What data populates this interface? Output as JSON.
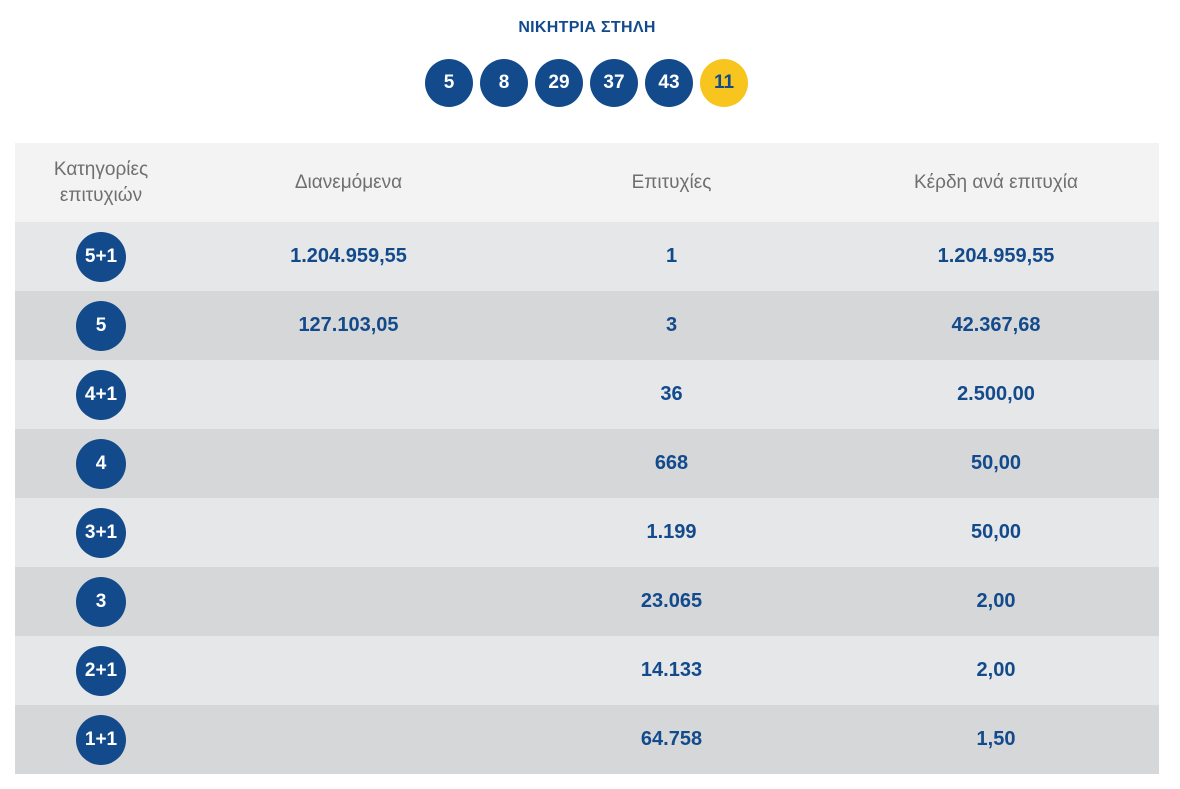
{
  "title": "ΝΙΚΗΤΡΙΑ ΣΤΗΛΗ",
  "winning_numbers": [
    "5",
    "8",
    "29",
    "37",
    "43"
  ],
  "bonus_number": "11",
  "colors": {
    "primary": "#124a8c",
    "bonus": "#f7c51e",
    "header_bg": "#f3f3f3",
    "row_light": "#e6e7e9",
    "row_dark": "#d6d7d9"
  },
  "table": {
    "headers": {
      "category_line1": "Κατηγορίες",
      "category_line2": "επιτυχιών",
      "distributed": "Διανεμόμενα",
      "winners": "Επιτυχίες",
      "prize_per_winner": "Κέρδη ανά επιτυχία"
    },
    "rows": [
      {
        "category": "5+1",
        "distributed": "1.204.959,55",
        "winners": "1",
        "prize": "1.204.959,55"
      },
      {
        "category": "5",
        "distributed": "127.103,05",
        "winners": "3",
        "prize": "42.367,68"
      },
      {
        "category": "4+1",
        "distributed": "",
        "winners": "36",
        "prize": "2.500,00"
      },
      {
        "category": "4",
        "distributed": "",
        "winners": "668",
        "prize": "50,00"
      },
      {
        "category": "3+1",
        "distributed": "",
        "winners": "1.199",
        "prize": "50,00"
      },
      {
        "category": "3",
        "distributed": "",
        "winners": "23.065",
        "prize": "2,00"
      },
      {
        "category": "2+1",
        "distributed": "",
        "winners": "14.133",
        "prize": "2,00"
      },
      {
        "category": "1+1",
        "distributed": "",
        "winners": "64.758",
        "prize": "1,50"
      }
    ]
  }
}
